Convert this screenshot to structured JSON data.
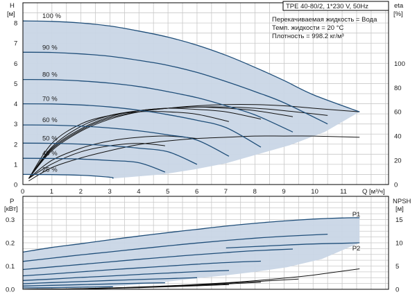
{
  "title_box": "TPE 40-80/2, 1*230 V, 50Hz",
  "info": [
    "Перекачиваемая жидкость = Вода",
    "Темп. жидкости = 20 °C",
    "Плотность = 998.2 кг/м³"
  ],
  "colors": {
    "region": "#c9d6e6",
    "curve": "#1f4e79",
    "eff": "#111111",
    "grid": "#c8c8c8"
  },
  "chart_data": [
    {
      "type": "line",
      "name": "head",
      "yaxis_label": [
        "H",
        "[м]"
      ],
      "y2axis_label": [
        "eta",
        "[%]"
      ],
      "xlabel": "Q [м³/ч]",
      "xlim": [
        0,
        12.6
      ],
      "ylim": [
        0,
        9
      ],
      "y2lim": [
        0,
        100
      ],
      "x_ticks": [
        0,
        1,
        2,
        3,
        4,
        5,
        6,
        7,
        8,
        9,
        10,
        11
      ],
      "y_ticks": [
        0,
        1,
        2,
        3,
        4,
        5,
        6,
        7,
        8
      ],
      "y2_ticks": [
        0,
        20,
        40,
        60,
        80,
        100
      ],
      "grid": true,
      "speed_labels": [
        "100 %",
        "90 %",
        "80 %",
        "70 %",
        "60 %",
        "50 %",
        "40 %",
        "25 %"
      ],
      "series": [
        {
          "label": "100 %",
          "x": [
            0,
            1,
            2,
            3,
            4,
            5,
            6,
            7,
            8,
            9,
            10,
            11.6
          ],
          "y": [
            8.1,
            8.08,
            8.0,
            7.85,
            7.6,
            7.3,
            6.9,
            6.4,
            5.8,
            5.15,
            4.45,
            3.6
          ]
        },
        {
          "label": "90 %",
          "x": [
            0,
            1,
            2,
            3,
            4,
            5,
            6,
            7,
            8,
            9,
            10.5
          ],
          "y": [
            6.55,
            6.54,
            6.47,
            6.35,
            6.15,
            5.9,
            5.55,
            5.1,
            4.6,
            4.05,
            3.0
          ]
        },
        {
          "label": "80 %",
          "x": [
            0,
            1,
            2,
            3,
            4,
            5,
            6,
            7,
            8,
            9.3
          ],
          "y": [
            5.2,
            5.19,
            5.13,
            5.02,
            4.85,
            4.6,
            4.3,
            3.9,
            3.45,
            2.6
          ]
        },
        {
          "label": "70 %",
          "x": [
            0,
            1,
            2,
            3,
            4,
            5,
            6,
            7,
            8.2
          ],
          "y": [
            4.0,
            3.99,
            3.94,
            3.84,
            3.68,
            3.46,
            3.18,
            2.82,
            1.85
          ]
        },
        {
          "label": "60 %",
          "x": [
            0,
            1,
            2,
            3,
            4,
            5,
            6,
            7.1
          ],
          "y": [
            2.95,
            2.94,
            2.89,
            2.8,
            2.66,
            2.46,
            2.2,
            1.4
          ]
        },
        {
          "label": "50 %",
          "x": [
            0,
            1,
            2,
            3,
            4,
            5,
            6.0
          ],
          "y": [
            2.05,
            2.04,
            2.0,
            1.92,
            1.8,
            1.62,
            1.0
          ]
        },
        {
          "label": "40 %",
          "x": [
            0,
            1,
            2,
            3,
            4,
            4.9
          ],
          "y": [
            1.3,
            1.29,
            1.26,
            1.19,
            1.08,
            0.62
          ]
        },
        {
          "label": "25 %",
          "x": [
            0,
            1,
            2,
            3,
            3.1
          ],
          "y": [
            0.5,
            0.49,
            0.46,
            0.36,
            0.3
          ]
        }
      ],
      "efficiency": [
        {
          "x": [
            0.2,
            1,
            2,
            3,
            4,
            5,
            6,
            7,
            8,
            9,
            10,
            11.6
          ],
          "y": [
            5,
            28,
            44,
            54,
            60,
            63,
            65,
            66,
            66,
            65,
            63,
            60
          ]
        },
        {
          "x": [
            0.2,
            1,
            2,
            3,
            4,
            5,
            6,
            7,
            8,
            9,
            10.5
          ],
          "y": [
            5,
            29,
            45,
            55,
            60,
            63,
            64,
            64,
            63,
            61,
            57
          ]
        },
        {
          "x": [
            0.2,
            1,
            2,
            3,
            4,
            5,
            6,
            7,
            8,
            9.3
          ],
          "y": [
            5,
            30,
            46,
            56,
            61,
            63,
            64,
            63,
            61,
            56
          ]
        },
        {
          "x": [
            0.2,
            1,
            2,
            3,
            4,
            5,
            6,
            7,
            8.2
          ],
          "y": [
            5,
            31,
            48,
            57,
            61,
            63,
            62,
            60,
            54
          ]
        },
        {
          "x": [
            0.2,
            1,
            2,
            3,
            4,
            5,
            6,
            7.1
          ],
          "y": [
            5,
            34,
            50,
            57,
            60,
            60,
            58,
            52
          ]
        },
        {
          "x": [
            0.2,
            1,
            2,
            3,
            4,
            5,
            6.0
          ],
          "y": [
            5,
            20,
            30,
            36,
            39,
            40,
            38
          ]
        },
        {
          "x": [
            0.2,
            1,
            2,
            3,
            4,
            4.9
          ],
          "y": [
            5,
            17,
            27,
            32,
            34,
            32
          ]
        },
        {
          "x": [
            0.2,
            1,
            2,
            3,
            4,
            5,
            6,
            7,
            8,
            9,
            10,
            11.6
          ],
          "y": [
            3,
            14,
            22,
            28,
            33,
            36,
            38,
            39,
            40,
            40,
            40,
            39
          ]
        }
      ]
    },
    {
      "type": "line",
      "name": "power-npsh",
      "yaxis_label": [
        "P",
        "[кВт]"
      ],
      "y2axis_label": [
        "NPSH",
        "[м]"
      ],
      "xlim": [
        0,
        12.6
      ],
      "ylim": [
        0,
        0.3
      ],
      "y2lim": [
        0,
        15
      ],
      "y_ticks": [
        0.0,
        0.1,
        0.2,
        0.3
      ],
      "y_tick_labels": [
        "0.0",
        "0.1",
        "0.2",
        "0.3"
      ],
      "y2_ticks": [
        0,
        5,
        10,
        15
      ],
      "grid": true,
      "markers": [
        "P1",
        "P2"
      ],
      "series": [
        {
          "label": "P1",
          "x": [
            0,
            1,
            2,
            3,
            4,
            5,
            6,
            7,
            8,
            9,
            10,
            11,
            11.6
          ],
          "y": [
            0.16,
            0.18,
            0.196,
            0.213,
            0.229,
            0.244,
            0.258,
            0.272,
            0.284,
            0.294,
            0.302,
            0.307,
            0.308
          ]
        },
        {
          "label": "",
          "x": [
            0,
            1,
            2,
            3,
            4,
            5,
            6,
            7,
            8,
            9,
            10.5
          ],
          "y": [
            0.12,
            0.134,
            0.148,
            0.161,
            0.174,
            0.187,
            0.199,
            0.21,
            0.22,
            0.228,
            0.237
          ]
        },
        {
          "label": "",
          "x": [
            0,
            1,
            2,
            3,
            4,
            5,
            6,
            7,
            8,
            9.3
          ],
          "y": [
            0.085,
            0.096,
            0.107,
            0.118,
            0.129,
            0.139,
            0.149,
            0.158,
            0.166,
            0.173
          ]
        },
        {
          "label": "",
          "x": [
            0,
            1,
            2,
            3,
            4,
            5,
            6,
            7,
            8.2
          ],
          "y": [
            0.058,
            0.066,
            0.075,
            0.084,
            0.092,
            0.1,
            0.108,
            0.115,
            0.121
          ]
        },
        {
          "label": "",
          "x": [
            0,
            1,
            2,
            3,
            4,
            5,
            6,
            7.1
          ],
          "y": [
            0.038,
            0.044,
            0.051,
            0.057,
            0.064,
            0.07,
            0.076,
            0.081
          ]
        },
        {
          "label": "",
          "x": [
            0,
            1,
            2,
            3,
            4,
            5,
            6.0
          ],
          "y": [
            0.024,
            0.029,
            0.033,
            0.038,
            0.042,
            0.046,
            0.05
          ]
        },
        {
          "label": "",
          "x": [
            0,
            1,
            2,
            3,
            4,
            4.9
          ],
          "y": [
            0.014,
            0.017,
            0.02,
            0.023,
            0.026,
            0.028
          ]
        },
        {
          "label": "",
          "x": [
            0,
            1,
            2,
            3.1
          ],
          "y": [
            0.006,
            0.007,
            0.009,
            0.011
          ]
        },
        {
          "label": "P2",
          "x": [
            7,
            8,
            9,
            10,
            11,
            11.6
          ],
          "y": [
            0.178,
            0.184,
            0.19,
            0.195,
            0.198,
            0.2
          ]
        }
      ],
      "npsh": [
        {
          "x": [
            0,
            1,
            2,
            3,
            4,
            5,
            6,
            7,
            8,
            9,
            10,
            11,
            11.6
          ],
          "y": [
            0.0,
            0.05,
            0.15,
            0.3,
            0.5,
            0.75,
            1.05,
            1.4,
            1.85,
            2.4,
            3.05,
            3.9,
            4.4
          ]
        },
        {
          "x": [
            0,
            2,
            4,
            6,
            8,
            9.5
          ],
          "y": [
            0.0,
            0.12,
            0.45,
            0.95,
            1.65,
            2.2
          ]
        },
        {
          "x": [
            0,
            2,
            4,
            6,
            8.2
          ],
          "y": [
            0.0,
            0.1,
            0.4,
            0.85,
            1.5
          ]
        },
        {
          "x": [
            0,
            2,
            4,
            6,
            7.1
          ],
          "y": [
            0.0,
            0.08,
            0.35,
            0.75,
            1.0
          ]
        }
      ]
    }
  ]
}
